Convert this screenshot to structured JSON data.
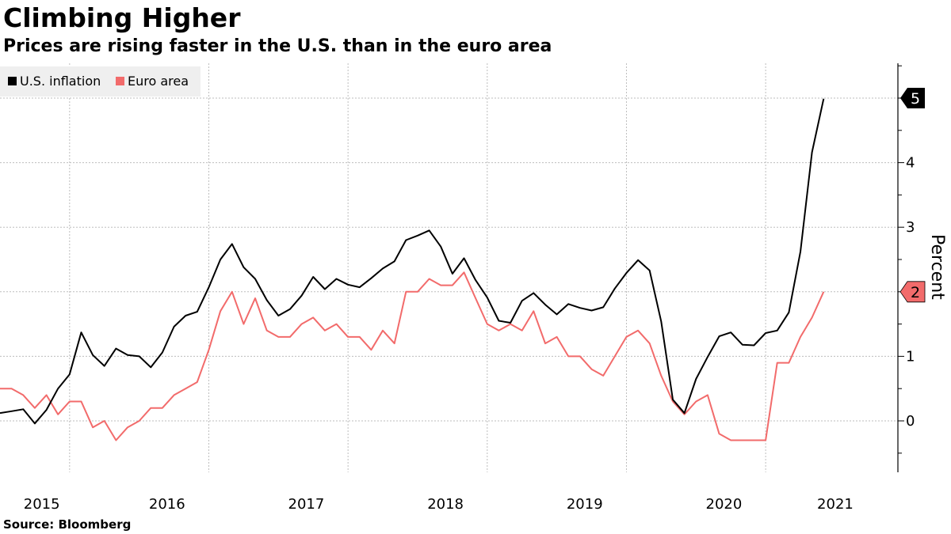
{
  "title": "Climbing Higher",
  "subtitle": "Prices are rising faster in the U.S. than in the euro area",
  "source": "Source: Bloomberg",
  "chart_data": {
    "type": "line",
    "title": "Climbing Higher",
    "subtitle": "Prices are rising faster in the U.S. than in the euro area",
    "xlabel": "",
    "ylabel": "Percent",
    "ylim": [
      -0.8,
      5.5
    ],
    "yticks": [
      0,
      1,
      2,
      3,
      4
    ],
    "xlim": [
      2015.0,
      2021.45
    ],
    "xtick_labels": [
      {
        "label": "2015",
        "x": 2015.3
      },
      {
        "label": "2016",
        "x": 2016.2
      },
      {
        "label": "2017",
        "x": 2017.2
      },
      {
        "label": "2018",
        "x": 2018.2
      },
      {
        "label": "2019",
        "x": 2019.2
      },
      {
        "label": "2020",
        "x": 2020.2
      },
      {
        "label": "2021",
        "x": 2021.0
      }
    ],
    "x_gridlines": [
      2015.5,
      2016.5,
      2017.5,
      2018.5,
      2019.5,
      2020.5
    ],
    "legend": {
      "position": "top-left",
      "entries": [
        "U.S. inflation",
        "Euro area"
      ]
    },
    "end_labels": [
      {
        "series": "U.S. inflation",
        "text": "5",
        "value": 5.0
      },
      {
        "series": "Euro area",
        "text": "2",
        "value": 2.0
      }
    ],
    "series": [
      {
        "name": "U.S. inflation",
        "color": "#000000",
        "x_start": 2015.0,
        "x_step": 0.08333,
        "values": [
          0.12,
          0.15,
          0.18,
          -0.04,
          0.17,
          0.5,
          0.72,
          1.37,
          1.02,
          0.85,
          1.12,
          1.02,
          1.0,
          0.83,
          1.06,
          1.46,
          1.63,
          1.69,
          2.07,
          2.5,
          2.74,
          2.38,
          2.2,
          1.87,
          1.63,
          1.73,
          1.94,
          2.23,
          2.04,
          2.2,
          2.11,
          2.07,
          2.21,
          2.36,
          2.47,
          2.8,
          2.87,
          2.95,
          2.7,
          2.28,
          2.52,
          2.18,
          1.91,
          1.55,
          1.52,
          1.86,
          1.98,
          1.8,
          1.65,
          1.81,
          1.75,
          1.71,
          1.76,
          2.05,
          2.29,
          2.49,
          2.33,
          1.54,
          0.33,
          0.12,
          0.65,
          0.99,
          1.31,
          1.37,
          1.18,
          1.17,
          1.36,
          1.4,
          1.68,
          2.62,
          4.16,
          4.99
        ]
      },
      {
        "name": "Euro area",
        "color": "#f26b6b",
        "x_start": 2015.0,
        "x_step": 0.08333,
        "values": [
          0.5,
          0.5,
          0.4,
          0.2,
          0.4,
          0.1,
          0.3,
          0.3,
          -0.1,
          0.0,
          -0.3,
          -0.1,
          0.0,
          0.2,
          0.2,
          0.4,
          0.5,
          0.6,
          1.1,
          1.7,
          2.0,
          1.5,
          1.9,
          1.4,
          1.3,
          1.3,
          1.5,
          1.6,
          1.4,
          1.5,
          1.3,
          1.3,
          1.1,
          1.4,
          1.2,
          2.0,
          2.0,
          2.2,
          2.1,
          2.1,
          2.3,
          1.9,
          1.5,
          1.4,
          1.5,
          1.4,
          1.7,
          1.2,
          1.3,
          1.0,
          1.0,
          0.8,
          0.7,
          1.0,
          1.3,
          1.4,
          1.2,
          0.7,
          0.3,
          0.1,
          0.3,
          0.4,
          -0.2,
          -0.3,
          -0.3,
          -0.3,
          -0.3,
          0.9,
          0.9,
          1.3,
          1.6,
          2.0
        ]
      }
    ]
  }
}
